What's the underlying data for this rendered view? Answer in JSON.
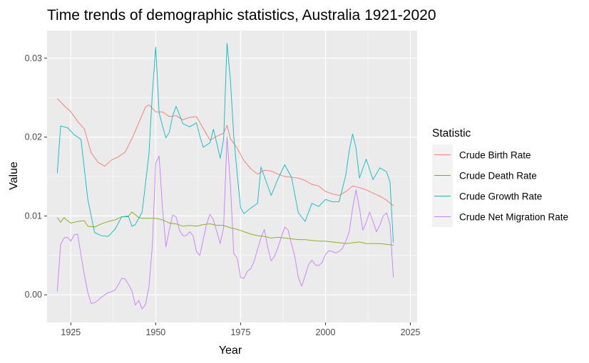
{
  "chart_data": {
    "type": "line",
    "title": "Time trends of demographic statistics, Australia 1921-2020",
    "xlabel": "Year",
    "ylabel": "Value",
    "xlim": [
      1918,
      2027
    ],
    "ylim": [
      -0.0035,
      0.0335
    ],
    "x_ticks": [
      1925,
      1950,
      1975,
      2000,
      2025
    ],
    "x_tick_labels": [
      "1925",
      "1950",
      "1975",
      "2000",
      "2025"
    ],
    "y_ticks": [
      0,
      0.01,
      0.02,
      0.03
    ],
    "y_tick_labels": [
      "0.00",
      "0.01",
      "0.02",
      "0.03"
    ],
    "grid": true,
    "legend": {
      "title": "Statistic",
      "position": "right"
    },
    "series": [
      {
        "name": "Crude Birth Rate",
        "color": "#F8766D",
        "x": [
          1921,
          1923,
          1925,
          1927,
          1929,
          1931,
          1933,
          1935,
          1937,
          1939,
          1941,
          1943,
          1945,
          1947,
          1948,
          1950,
          1952,
          1954,
          1956,
          1958,
          1960,
          1962,
          1964,
          1966,
          1968,
          1970,
          1971,
          1972,
          1974,
          1976,
          1978,
          1980,
          1982,
          1984,
          1986,
          1988,
          1990,
          1992,
          1994,
          1996,
          1998,
          2000,
          2002,
          2004,
          2006,
          2008,
          2010,
          2012,
          2014,
          2016,
          2018,
          2020
        ],
        "values": [
          0.0249,
          0.024,
          0.0232,
          0.022,
          0.021,
          0.018,
          0.0168,
          0.0163,
          0.0171,
          0.0175,
          0.0181,
          0.0198,
          0.0218,
          0.0238,
          0.0241,
          0.0232,
          0.0232,
          0.0226,
          0.0227,
          0.0222,
          0.0225,
          0.0226,
          0.0211,
          0.0196,
          0.0201,
          0.0205,
          0.0215,
          0.0198,
          0.0186,
          0.017,
          0.016,
          0.0153,
          0.0158,
          0.0157,
          0.0153,
          0.015,
          0.0149,
          0.0148,
          0.0145,
          0.014,
          0.0138,
          0.0131,
          0.0128,
          0.0126,
          0.0131,
          0.0138,
          0.0136,
          0.0133,
          0.0129,
          0.0125,
          0.012,
          0.0113
        ]
      },
      {
        "name": "Crude Death Rate",
        "color": "#7CAE00",
        "x": [
          1921,
          1922,
          1923,
          1924,
          1925,
          1927,
          1929,
          1930,
          1932,
          1934,
          1936,
          1938,
          1940,
          1942,
          1943,
          1945,
          1946,
          1948,
          1950,
          1952,
          1954,
          1956,
          1958,
          1960,
          1962,
          1964,
          1966,
          1968,
          1970,
          1972,
          1974,
          1976,
          1978,
          1980,
          1982,
          1984,
          1986,
          1988,
          1990,
          1992,
          1994,
          1996,
          1998,
          2000,
          2002,
          2004,
          2006,
          2008,
          2010,
          2012,
          2014,
          2016,
          2018,
          2020
        ],
        "values": [
          0.0098,
          0.0092,
          0.0098,
          0.0094,
          0.0091,
          0.0093,
          0.0094,
          0.0087,
          0.0086,
          0.009,
          0.0093,
          0.0095,
          0.0099,
          0.01,
          0.0105,
          0.0098,
          0.0097,
          0.0097,
          0.0097,
          0.0095,
          0.0091,
          0.009,
          0.0087,
          0.0088,
          0.0087,
          0.0089,
          0.009,
          0.0088,
          0.0088,
          0.0085,
          0.0083,
          0.008,
          0.0077,
          0.0075,
          0.0074,
          0.0072,
          0.0073,
          0.0072,
          0.0071,
          0.007,
          0.007,
          0.0069,
          0.0068,
          0.0068,
          0.0067,
          0.0066,
          0.0065,
          0.0066,
          0.0067,
          0.0065,
          0.0065,
          0.0065,
          0.0064,
          0.0063
        ]
      },
      {
        "name": "Crude Growth Rate",
        "color": "#00BFC4",
        "x": [
          1921,
          1922,
          1924,
          1926,
          1928,
          1930,
          1932,
          1934,
          1936,
          1938,
          1940,
          1942,
          1943,
          1944,
          1946,
          1948,
          1949,
          1950,
          1951,
          1952,
          1953,
          1954,
          1955,
          1956,
          1958,
          1960,
          1962,
          1963,
          1964,
          1966,
          1967,
          1968,
          1969,
          1970,
          1971,
          1972,
          1973,
          1974,
          1975,
          1976,
          1978,
          1980,
          1981,
          1982,
          1984,
          1986,
          1988,
          1990,
          1992,
          1994,
          1996,
          1998,
          2000,
          2002,
          2004,
          2006,
          2007,
          2008,
          2009,
          2010,
          2012,
          2014,
          2016,
          2018,
          2019,
          2020
        ],
        "values": [
          0.0154,
          0.0214,
          0.0212,
          0.0203,
          0.0197,
          0.0121,
          0.0079,
          0.0075,
          0.0074,
          0.0083,
          0.0099,
          0.0099,
          0.0087,
          0.0089,
          0.0105,
          0.0178,
          0.0255,
          0.0314,
          0.0231,
          0.0214,
          0.0199,
          0.0206,
          0.0227,
          0.0239,
          0.0217,
          0.0213,
          0.0218,
          0.0201,
          0.0187,
          0.0193,
          0.021,
          0.0192,
          0.0173,
          0.0197,
          0.0319,
          0.0273,
          0.02,
          0.0153,
          0.011,
          0.0103,
          0.011,
          0.0116,
          0.0162,
          0.015,
          0.0126,
          0.0147,
          0.0165,
          0.0149,
          0.0104,
          0.0093,
          0.0116,
          0.0112,
          0.0121,
          0.0118,
          0.0118,
          0.0152,
          0.0183,
          0.0204,
          0.0186,
          0.0148,
          0.0172,
          0.0146,
          0.0161,
          0.0156,
          0.0143,
          0.0066
        ]
      },
      {
        "name": "Crude Net Migration Rate",
        "color": "#C77CFF",
        "x": [
          1921,
          1922,
          1923,
          1924,
          1925,
          1926,
          1927,
          1928,
          1929,
          1930,
          1931,
          1932,
          1933,
          1934,
          1935,
          1936,
          1937,
          1938,
          1939,
          1940,
          1941,
          1942,
          1943,
          1944,
          1945,
          1946,
          1947,
          1948,
          1949,
          1950,
          1951,
          1952,
          1953,
          1954,
          1955,
          1956,
          1957,
          1958,
          1959,
          1960,
          1961,
          1962,
          1963,
          1964,
          1965,
          1966,
          1967,
          1968,
          1969,
          1970,
          1971,
          1972,
          1973,
          1974,
          1975,
          1976,
          1977,
          1978,
          1979,
          1980,
          1981,
          1982,
          1983,
          1984,
          1985,
          1986,
          1987,
          1988,
          1989,
          1990,
          1991,
          1992,
          1993,
          1994,
          1995,
          1996,
          1997,
          1998,
          1999,
          2000,
          2001,
          2002,
          2003,
          2004,
          2005,
          2006,
          2007,
          2008,
          2009,
          2010,
          2011,
          2012,
          2013,
          2014,
          2015,
          2016,
          2017,
          2018,
          2019,
          2020
        ],
        "values": [
          0.0004,
          0.0064,
          0.0072,
          0.0073,
          0.0068,
          0.0076,
          0.0077,
          0.005,
          0.0025,
          0.0003,
          -0.0011,
          -0.001,
          -0.0007,
          -0.0003,
          0.0,
          0.0003,
          0.0004,
          0.0006,
          0.0013,
          0.0021,
          0.002,
          0.0013,
          0.0005,
          -0.0013,
          -0.0007,
          -0.0018,
          -0.0012,
          0.001,
          0.0062,
          0.0167,
          0.0176,
          0.011,
          0.0061,
          0.0082,
          0.0101,
          0.0099,
          0.0082,
          0.0075,
          0.0075,
          0.008,
          0.0075,
          0.0055,
          0.005,
          0.007,
          0.009,
          0.0102,
          0.0095,
          0.008,
          0.0065,
          0.0085,
          0.02,
          0.014,
          0.0052,
          0.0047,
          0.0022,
          0.0021,
          0.003,
          0.0033,
          0.0043,
          0.0058,
          0.0072,
          0.0083,
          0.006,
          0.0043,
          0.0049,
          0.006,
          0.0073,
          0.0086,
          0.0082,
          0.0065,
          0.0048,
          0.0022,
          0.0011,
          0.0024,
          0.0038,
          0.0044,
          0.0038,
          0.0037,
          0.0041,
          0.0051,
          0.0056,
          0.0055,
          0.0053,
          0.0055,
          0.0059,
          0.0068,
          0.008,
          0.011,
          0.0133,
          0.011,
          0.0082,
          0.0092,
          0.0105,
          0.0093,
          0.008,
          0.0088,
          0.01,
          0.0104,
          0.009,
          0.0022
        ]
      }
    ]
  }
}
